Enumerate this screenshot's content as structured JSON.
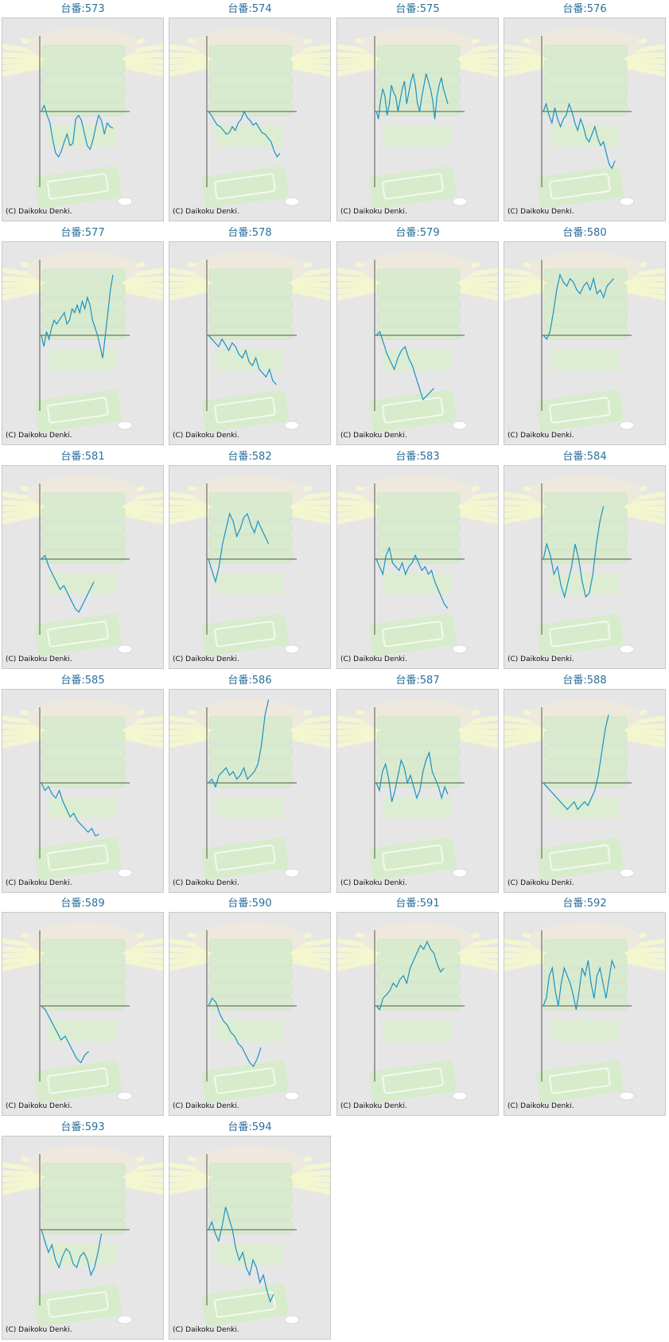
{
  "chart_data": [
    {
      "type": "line",
      "title": "台番:573",
      "credit": "(C) Daikoku Denki.",
      "values": [
        0,
        8,
        -5,
        -15,
        -38,
        -55,
        -60,
        -52,
        -40,
        -30,
        -45,
        -42,
        -10,
        -5,
        -12,
        -28,
        -45,
        -50,
        -38,
        -20,
        -5,
        -12,
        -30,
        -15,
        -20,
        -22
      ]
    },
    {
      "type": "line",
      "title": "台番:574",
      "credit": "(C) Daikoku Denki.",
      "values": [
        0,
        -5,
        -12,
        -18,
        -20,
        -25,
        -30,
        -28,
        -20,
        -25,
        -15,
        -10,
        0,
        -8,
        -12,
        -18,
        -15,
        -22,
        -28,
        -30,
        -35,
        -40,
        -52,
        -60,
        -55
      ]
    },
    {
      "type": "line",
      "title": "台番:575",
      "credit": "(C) Daikoku Denki.",
      "values": [
        0,
        -10,
        15,
        30,
        20,
        -5,
        10,
        35,
        25,
        20,
        0,
        15,
        30,
        40,
        10,
        25,
        40,
        50,
        35,
        10,
        0,
        20,
        35,
        50,
        40,
        30,
        15,
        -10,
        20,
        35,
        45,
        30,
        20,
        10
      ]
    },
    {
      "type": "line",
      "title": "台番:576",
      "credit": "(C) Daikoku Denki.",
      "values": [
        0,
        10,
        -5,
        -15,
        5,
        -10,
        -20,
        -10,
        -5,
        10,
        0,
        -15,
        -25,
        -10,
        -20,
        -35,
        -40,
        -30,
        -20,
        -35,
        -45,
        -40,
        -55,
        -70,
        -75,
        -65
      ]
    },
    {
      "type": "line",
      "title": "台番:577",
      "credit": "(C) Daikoku Denki.",
      "values": [
        0,
        -15,
        5,
        -5,
        10,
        20,
        15,
        20,
        25,
        30,
        15,
        20,
        35,
        30,
        40,
        30,
        45,
        35,
        50,
        40,
        20,
        10,
        0,
        -15,
        -30,
        0,
        30,
        60,
        80
      ]
    },
    {
      "type": "line",
      "title": "台番:578",
      "credit": "(C) Daikoku Denki.",
      "values": [
        0,
        -5,
        -10,
        -15,
        -5,
        -12,
        -20,
        -10,
        -15,
        -25,
        -30,
        -20,
        -35,
        -40,
        -30,
        -45,
        -50,
        -55,
        -45,
        -60,
        -65
      ]
    },
    {
      "type": "line",
      "title": "台番:579",
      "credit": "(C) Daikoku Denki.",
      "values": [
        0,
        5,
        -10,
        -25,
        -35,
        -45,
        -30,
        -20,
        -15,
        -30,
        -40,
        -55,
        -70,
        -85,
        -80,
        -75,
        -70
      ]
    },
    {
      "type": "line",
      "title": "台番:580",
      "credit": "(C) Daikoku Denki.",
      "values": [
        0,
        -5,
        5,
        30,
        60,
        80,
        70,
        65,
        75,
        70,
        60,
        55,
        65,
        70,
        60,
        75,
        55,
        60,
        50,
        65,
        70,
        75
      ]
    },
    {
      "type": "line",
      "title": "台番:581",
      "credit": "(C) Daikoku Denki.",
      "values": [
        0,
        5,
        -10,
        -20,
        -30,
        -40,
        -35,
        -45,
        -55,
        -65,
        -70,
        -60,
        -50,
        -40,
        -30
      ]
    },
    {
      "type": "line",
      "title": "台番:582",
      "credit": "(C) Daikoku Denki.",
      "values": [
        0,
        -15,
        -30,
        -10,
        20,
        40,
        60,
        50,
        30,
        40,
        55,
        60,
        45,
        35,
        50,
        40,
        30,
        20
      ]
    },
    {
      "type": "line",
      "title": "台番:583",
      "credit": "(C) Daikoku Denki.",
      "values": [
        0,
        -10,
        -20,
        5,
        15,
        -5,
        -10,
        -15,
        -5,
        -20,
        -10,
        -5,
        5,
        -5,
        -15,
        -10,
        -20,
        -15,
        -30,
        -40,
        -50,
        -60,
        -65
      ]
    },
    {
      "type": "line",
      "title": "台番:584",
      "credit": "(C) Daikoku Denki.",
      "values": [
        0,
        20,
        5,
        -20,
        -10,
        -35,
        -50,
        -30,
        -10,
        20,
        0,
        -30,
        -50,
        -45,
        -20,
        20,
        50,
        70
      ]
    },
    {
      "type": "line",
      "title": "台番:585",
      "credit": "(C) Daikoku Denki.",
      "values": [
        0,
        -10,
        -5,
        -15,
        -20,
        -10,
        -25,
        -35,
        -45,
        -40,
        -50,
        -55,
        -60,
        -65,
        -60,
        -70,
        -68
      ]
    },
    {
      "type": "line",
      "title": "台番:586",
      "credit": "(C) Daikoku Denki.",
      "values": [
        0,
        5,
        -5,
        10,
        15,
        20,
        10,
        15,
        5,
        10,
        20,
        5,
        10,
        15,
        25,
        50,
        90,
        110
      ]
    },
    {
      "type": "line",
      "title": "台番:587",
      "credit": "(C) Daikoku Denki.",
      "values": [
        0,
        -10,
        15,
        25,
        5,
        -25,
        -10,
        10,
        30,
        20,
        0,
        10,
        -5,
        -20,
        -10,
        15,
        30,
        40,
        15,
        5,
        -5,
        -20,
        -5,
        -15
      ]
    },
    {
      "type": "line",
      "title": "台番:588",
      "credit": "(C) Daikoku Denki.",
      "values": [
        0,
        -5,
        -10,
        -15,
        -20,
        -25,
        -30,
        -35,
        -30,
        -25,
        -35,
        -30,
        -25,
        -30,
        -20,
        -10,
        10,
        40,
        70,
        90
      ]
    },
    {
      "type": "line",
      "title": "台番:589",
      "credit": "(C) Daikoku Denki.",
      "values": [
        0,
        -5,
        -15,
        -25,
        -35,
        -45,
        -40,
        -50,
        -60,
        -70,
        -75,
        -65,
        -60
      ]
    },
    {
      "type": "line",
      "title": "台番:590",
      "credit": "(C) Daikoku Denki.",
      "values": [
        0,
        10,
        5,
        -10,
        -20,
        -25,
        -35,
        -40,
        -50,
        -55,
        -65,
        -75,
        -80,
        -70,
        -55
      ]
    },
    {
      "type": "line",
      "title": "台番:591",
      "credit": "(C) Daikoku Denki.",
      "values": [
        0,
        -5,
        10,
        15,
        20,
        30,
        25,
        35,
        40,
        30,
        50,
        60,
        70,
        80,
        75,
        85,
        75,
        70,
        55,
        45,
        50
      ]
    },
    {
      "type": "line",
      "title": "台番:592",
      "credit": "(C) Daikoku Denki.",
      "values": [
        0,
        10,
        40,
        50,
        20,
        0,
        30,
        50,
        40,
        30,
        15,
        -5,
        20,
        50,
        40,
        60,
        30,
        10,
        40,
        50,
        30,
        10,
        35,
        60,
        50
      ]
    },
    {
      "type": "line",
      "title": "台番:593",
      "credit": "(C) Daikoku Denki.",
      "values": [
        0,
        -15,
        -30,
        -20,
        -40,
        -50,
        -35,
        -25,
        -30,
        -45,
        -50,
        -35,
        -30,
        -40,
        -60,
        -50,
        -30,
        -5
      ]
    },
    {
      "type": "line",
      "title": "台番:594",
      "credit": "(C) Daikoku Denki.",
      "values": [
        0,
        10,
        -5,
        -15,
        5,
        30,
        15,
        0,
        -25,
        -40,
        -30,
        -50,
        -60,
        -40,
        -50,
        -70,
        -60,
        -80,
        -95,
        -85
      ]
    }
  ]
}
